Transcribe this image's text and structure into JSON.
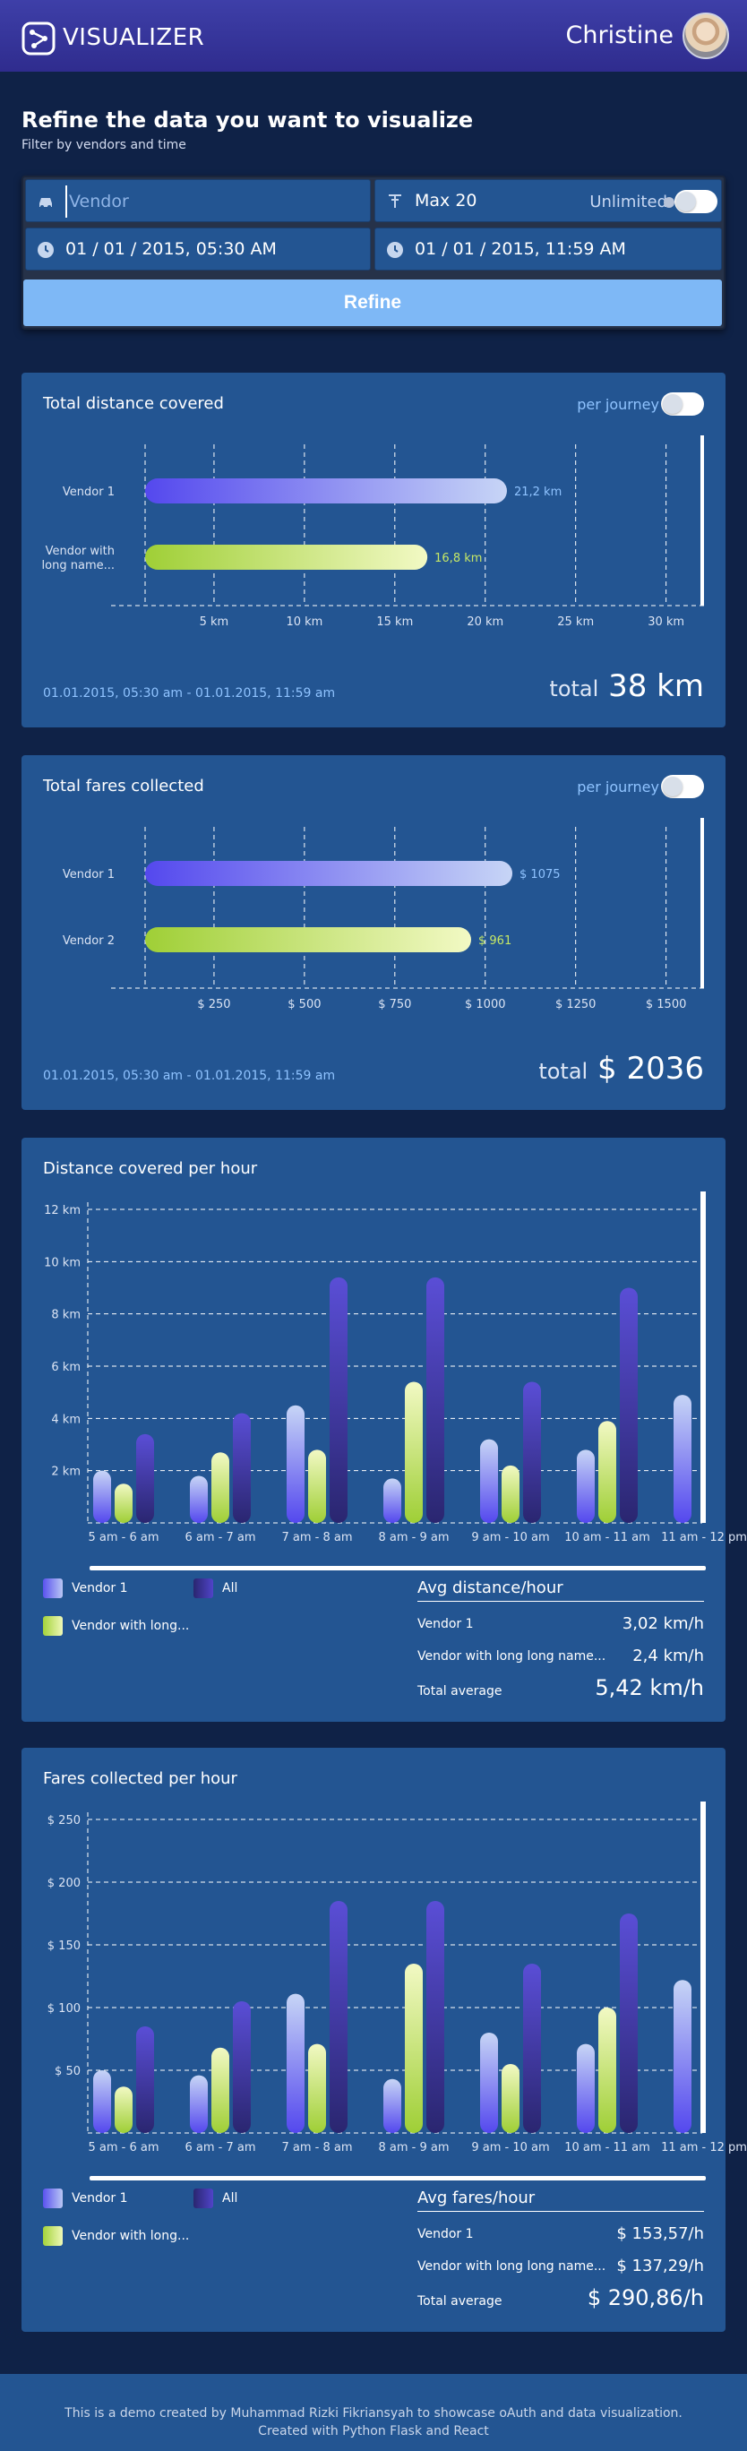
{
  "header": {
    "app_name": "VISUALIZER",
    "user_name": "Christine"
  },
  "filter": {
    "title": "Refine the data you want to visualize",
    "subtitle": "Filter by vendors and time",
    "vendor_placeholder": "Vendor",
    "max_label": "Max 20",
    "unlimited_label": "Unlimited",
    "start_datetime": "01 / 01 / 2015, 05:30 AM",
    "end_datetime": "01 / 01 / 2015, 11:59 AM",
    "refine_label": "Refine"
  },
  "distance_card": {
    "title": "Total distance covered",
    "per_journey_label": "per journey",
    "date_range": "01.01.2015, 05:30 am - 01.01.2015, 11:59 am",
    "total_label": "total",
    "total_value": "38 km"
  },
  "fares_card": {
    "title": "Total fares collected",
    "per_journey_label": "per journey",
    "date_range": "01.01.2015, 05:30 am - 01.01.2015, 11:59 am",
    "total_label": "total",
    "total_value": "$ 2036"
  },
  "distance_hour_card": {
    "title": "Distance covered per hour",
    "legend": [
      "Vendor 1",
      "All",
      "Vendor with long..."
    ],
    "avg_title": "Avg distance/hour",
    "avg_rows": [
      {
        "label": "Vendor 1",
        "value": "3,02 km/h"
      },
      {
        "label": "Vendor with long long name...",
        "value": "2,4 km/h"
      },
      {
        "label": "Total average",
        "value": "5,42 km/h"
      }
    ]
  },
  "fares_hour_card": {
    "title": "Fares collected per hour",
    "legend": [
      "Vendor 1",
      "All",
      "Vendor with long..."
    ],
    "avg_title": "Avg fares/hour",
    "avg_rows": [
      {
        "label": "Vendor 1",
        "value": "$ 153,57/h"
      },
      {
        "label": "Vendor with long long name...",
        "value": "$ 137,29/h"
      },
      {
        "label": "Total average",
        "value": "$ 290,86/h"
      }
    ]
  },
  "footer": {
    "line1": "This is a demo created by Muhammad Rizki Fikriansyah to showcase oAuth and data visualization.",
    "line2": "Created with Python Flask and React"
  },
  "colors": {
    "background": "#0f2247",
    "card": "#235592",
    "vendor1": "#6f68f5",
    "vendor2": "#b4de4e",
    "all": "#4a3ec0",
    "accent": "#8fc3ff"
  },
  "chart_data": [
    {
      "type": "bar",
      "orientation": "horizontal",
      "title": "Total distance covered",
      "categories": [
        "Vendor 1",
        "Vendor with long name..."
      ],
      "values": [
        21.2,
        16.8
      ],
      "value_labels": [
        "21,2 km",
        "16,8 km"
      ],
      "tick_labels": [
        "5 km",
        "10 km",
        "15 km",
        "20 km",
        "25 km",
        "30 km"
      ],
      "ticks": [
        5,
        10,
        15,
        20,
        25,
        30
      ],
      "xlim": [
        0,
        32
      ]
    },
    {
      "type": "bar",
      "orientation": "horizontal",
      "title": "Total fares collected",
      "categories": [
        "Vendor 1",
        "Vendor 2"
      ],
      "values": [
        1075,
        961
      ],
      "value_labels": [
        "$ 1075",
        "$ 961"
      ],
      "tick_labels": [
        "$ 250",
        "$ 500",
        "$ 750",
        "$ 1000",
        "$ 1250",
        "$ 1500"
      ],
      "ticks": [
        250,
        500,
        750,
        1000,
        1250,
        1500
      ],
      "xlim": [
        0,
        1600
      ]
    },
    {
      "type": "bar",
      "title": "Distance covered per hour",
      "categories": [
        "5 am - 6 am",
        "6 am - 7 am",
        "7 am - 8 am",
        "8 am - 9 am",
        "9 am - 10 am",
        "10 am - 11 am",
        "11 am - 12 pm"
      ],
      "series": [
        {
          "name": "Vendor 1",
          "values": [
            2.0,
            1.8,
            4.5,
            1.7,
            3.2,
            2.8,
            4.9
          ]
        },
        {
          "name": "Vendor with long...",
          "values": [
            1.5,
            2.7,
            2.8,
            5.4,
            2.2,
            3.9,
            0
          ]
        },
        {
          "name": "All",
          "values": [
            3.4,
            4.2,
            9.4,
            9.4,
            5.4,
            9.0,
            0
          ]
        }
      ],
      "tick_labels": [
        "2 km",
        "4 km",
        "6 km",
        "8 km",
        "10 km",
        "12 km"
      ],
      "ticks": [
        2,
        4,
        6,
        8,
        10,
        12
      ],
      "ylim": [
        0,
        12
      ]
    },
    {
      "type": "bar",
      "title": "Fares collected per hour",
      "categories": [
        "5 am - 6 am",
        "6 am - 7 am",
        "7 am - 8 am",
        "8 am - 9 am",
        "9 am - 10 am",
        "10 am - 11 am",
        "11 am - 12 pm"
      ],
      "series": [
        {
          "name": "Vendor 1",
          "values": [
            50,
            46,
            111,
            43,
            80,
            71,
            122
          ]
        },
        {
          "name": "Vendor with long...",
          "values": [
            37,
            68,
            71,
            135,
            55,
            100,
            0
          ]
        },
        {
          "name": "All",
          "values": [
            85,
            105,
            185,
            185,
            135,
            175,
            0
          ]
        }
      ],
      "tick_labels": [
        "$ 50",
        "$ 100",
        "$ 150",
        "$ 200",
        "$ 250"
      ],
      "ticks": [
        50,
        100,
        150,
        200,
        250
      ],
      "ylim": [
        0,
        250
      ]
    }
  ]
}
